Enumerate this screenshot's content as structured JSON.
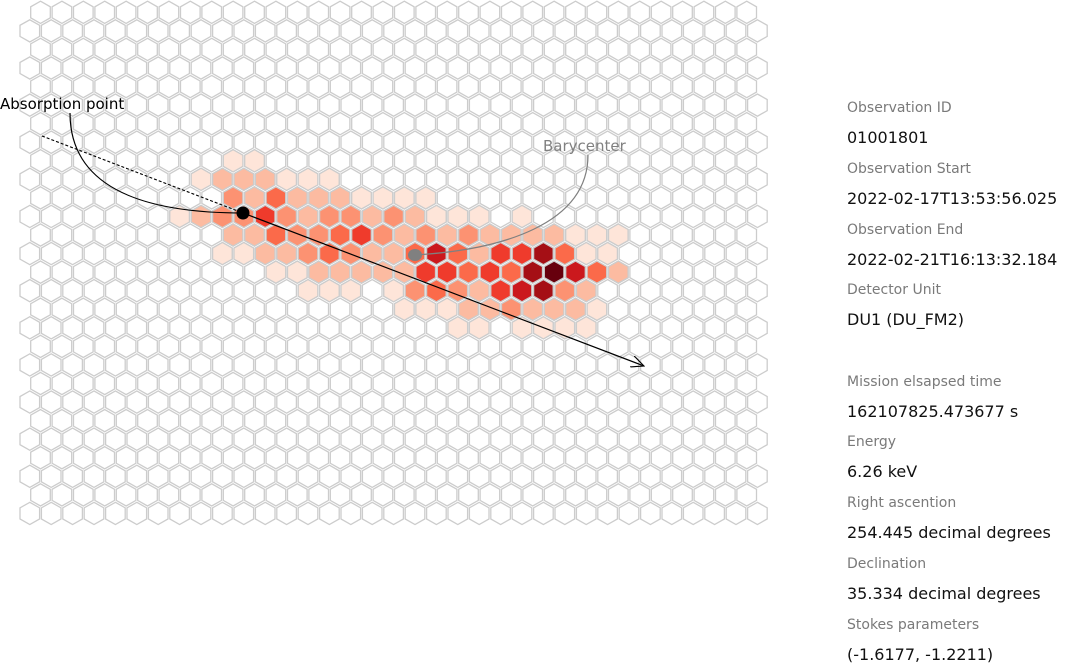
{
  "annotations": {
    "absorption_point": "Absorption point",
    "barycenter": "Barycenter"
  },
  "info": [
    {
      "label": "Observation ID",
      "value": "01001801"
    },
    {
      "label": "Observation Start",
      "value": "2022-02-17T13:53:56.025"
    },
    {
      "label": "Observation End",
      "value": "2022-02-21T16:13:32.184"
    },
    {
      "label": "Detector Unit",
      "value": "DU1 (DU_FM2)"
    },
    {
      "label": "Mission elsapsed time",
      "value": "162107825.473677 s"
    },
    {
      "label": "Energy",
      "value": "6.26 keV"
    },
    {
      "label": "Right ascention",
      "value": "254.445 decimal degrees"
    },
    {
      "label": "Declination",
      "value": "35.334 decimal degrees"
    },
    {
      "label": "Stokes parameters",
      "value": "(-1.6177, -1.2211)"
    }
  ],
  "colors": {
    "grid_stroke": "#cccccc",
    "absorption_marker": "#000000",
    "barycenter_marker": "#808080",
    "heat_scale": [
      "#fee5d9",
      "#fcbba1",
      "#fc9272",
      "#fb6a4a",
      "#ef3b2c",
      "#cb181d",
      "#a50f15",
      "#67000d"
    ]
  },
  "track_pixels": [
    {
      "row": 8,
      "col": 9,
      "level": 1
    },
    {
      "row": 8,
      "col": 10,
      "level": 1
    },
    {
      "row": 9,
      "col": 8,
      "level": 1
    },
    {
      "row": 9,
      "col": 9,
      "level": 2
    },
    {
      "row": 9,
      "col": 10,
      "level": 2
    },
    {
      "row": 9,
      "col": 11,
      "level": 2
    },
    {
      "row": 9,
      "col": 12,
      "level": 1
    },
    {
      "row": 9,
      "col": 13,
      "level": 1
    },
    {
      "row": 9,
      "col": 14,
      "level": 1
    },
    {
      "row": 10,
      "col": 9,
      "level": 3
    },
    {
      "row": 10,
      "col": 10,
      "level": 2
    },
    {
      "row": 10,
      "col": 11,
      "level": 4
    },
    {
      "row": 10,
      "col": 12,
      "level": 2
    },
    {
      "row": 10,
      "col": 13,
      "level": 2
    },
    {
      "row": 10,
      "col": 14,
      "level": 2
    },
    {
      "row": 10,
      "col": 15,
      "level": 1
    },
    {
      "row": 10,
      "col": 16,
      "level": 1
    },
    {
      "row": 10,
      "col": 17,
      "level": 1
    },
    {
      "row": 10,
      "col": 18,
      "level": 1
    },
    {
      "row": 11,
      "col": 7,
      "level": 1
    },
    {
      "row": 11,
      "col": 8,
      "level": 2
    },
    {
      "row": 11,
      "col": 9,
      "level": 3
    },
    {
      "row": 11,
      "col": 10,
      "level": 3
    },
    {
      "row": 11,
      "col": 11,
      "level": 5
    },
    {
      "row": 11,
      "col": 12,
      "level": 3
    },
    {
      "row": 11,
      "col": 13,
      "level": 2
    },
    {
      "row": 11,
      "col": 14,
      "level": 3
    },
    {
      "row": 11,
      "col": 15,
      "level": 3
    },
    {
      "row": 11,
      "col": 16,
      "level": 2
    },
    {
      "row": 11,
      "col": 17,
      "level": 3
    },
    {
      "row": 11,
      "col": 18,
      "level": 2
    },
    {
      "row": 11,
      "col": 19,
      "level": 1
    },
    {
      "row": 11,
      "col": 20,
      "level": 1
    },
    {
      "row": 11,
      "col": 21,
      "level": 1
    },
    {
      "row": 11,
      "col": 23,
      "level": 1
    },
    {
      "row": 12,
      "col": 9,
      "level": 2
    },
    {
      "row": 12,
      "col": 10,
      "level": 2
    },
    {
      "row": 12,
      "col": 11,
      "level": 4
    },
    {
      "row": 12,
      "col": 12,
      "level": 3
    },
    {
      "row": 12,
      "col": 13,
      "level": 3
    },
    {
      "row": 12,
      "col": 14,
      "level": 4
    },
    {
      "row": 12,
      "col": 15,
      "level": 5
    },
    {
      "row": 12,
      "col": 16,
      "level": 3
    },
    {
      "row": 12,
      "col": 17,
      "level": 2
    },
    {
      "row": 12,
      "col": 18,
      "level": 3
    },
    {
      "row": 12,
      "col": 19,
      "level": 2
    },
    {
      "row": 12,
      "col": 20,
      "level": 3
    },
    {
      "row": 12,
      "col": 21,
      "level": 2
    },
    {
      "row": 12,
      "col": 22,
      "level": 2
    },
    {
      "row": 12,
      "col": 23,
      "level": 2
    },
    {
      "row": 12,
      "col": 24,
      "level": 2
    },
    {
      "row": 12,
      "col": 25,
      "level": 1
    },
    {
      "row": 12,
      "col": 26,
      "level": 1
    },
    {
      "row": 12,
      "col": 27,
      "level": 1
    },
    {
      "row": 13,
      "col": 9,
      "level": 1
    },
    {
      "row": 13,
      "col": 10,
      "level": 1
    },
    {
      "row": 13,
      "col": 11,
      "level": 2
    },
    {
      "row": 13,
      "col": 12,
      "level": 2
    },
    {
      "row": 13,
      "col": 13,
      "level": 3
    },
    {
      "row": 13,
      "col": 14,
      "level": 4
    },
    {
      "row": 13,
      "col": 15,
      "level": 3
    },
    {
      "row": 13,
      "col": 16,
      "level": 2
    },
    {
      "row": 13,
      "col": 17,
      "level": 2
    },
    {
      "row": 13,
      "col": 18,
      "level": 4
    },
    {
      "row": 13,
      "col": 19,
      "level": 6
    },
    {
      "row": 13,
      "col": 20,
      "level": 4
    },
    {
      "row": 13,
      "col": 21,
      "level": 2
    },
    {
      "row": 13,
      "col": 22,
      "level": 5
    },
    {
      "row": 13,
      "col": 23,
      "level": 5
    },
    {
      "row": 13,
      "col": 24,
      "level": 7
    },
    {
      "row": 13,
      "col": 25,
      "level": 4
    },
    {
      "row": 13,
      "col": 26,
      "level": 1
    },
    {
      "row": 13,
      "col": 27,
      "level": 1
    },
    {
      "row": 14,
      "col": 11,
      "level": 1
    },
    {
      "row": 14,
      "col": 12,
      "level": 1
    },
    {
      "row": 14,
      "col": 13,
      "level": 2
    },
    {
      "row": 14,
      "col": 14,
      "level": 2
    },
    {
      "row": 14,
      "col": 15,
      "level": 2
    },
    {
      "row": 14,
      "col": 16,
      "level": 2
    },
    {
      "row": 14,
      "col": 17,
      "level": 2
    },
    {
      "row": 14,
      "col": 18,
      "level": 5
    },
    {
      "row": 14,
      "col": 19,
      "level": 5
    },
    {
      "row": 14,
      "col": 20,
      "level": 4
    },
    {
      "row": 14,
      "col": 21,
      "level": 5
    },
    {
      "row": 14,
      "col": 22,
      "level": 4
    },
    {
      "row": 14,
      "col": 23,
      "level": 7
    },
    {
      "row": 14,
      "col": 24,
      "level": 8
    },
    {
      "row": 14,
      "col": 25,
      "level": 6
    },
    {
      "row": 14,
      "col": 26,
      "level": 4
    },
    {
      "row": 14,
      "col": 27,
      "level": 2
    },
    {
      "row": 15,
      "col": 13,
      "level": 1
    },
    {
      "row": 15,
      "col": 14,
      "level": 1
    },
    {
      "row": 15,
      "col": 15,
      "level": 1
    },
    {
      "row": 15,
      "col": 17,
      "level": 1
    },
    {
      "row": 15,
      "col": 18,
      "level": 3
    },
    {
      "row": 15,
      "col": 19,
      "level": 4
    },
    {
      "row": 15,
      "col": 20,
      "level": 3
    },
    {
      "row": 15,
      "col": 21,
      "level": 2
    },
    {
      "row": 15,
      "col": 22,
      "level": 5
    },
    {
      "row": 15,
      "col": 23,
      "level": 6
    },
    {
      "row": 15,
      "col": 24,
      "level": 7
    },
    {
      "row": 15,
      "col": 25,
      "level": 3
    },
    {
      "row": 15,
      "col": 26,
      "level": 2
    },
    {
      "row": 16,
      "col": 17,
      "level": 1
    },
    {
      "row": 16,
      "col": 18,
      "level": 1
    },
    {
      "row": 16,
      "col": 19,
      "level": 1
    },
    {
      "row": 16,
      "col": 20,
      "level": 2
    },
    {
      "row": 16,
      "col": 21,
      "level": 2
    },
    {
      "row": 16,
      "col": 22,
      "level": 3
    },
    {
      "row": 16,
      "col": 23,
      "level": 2
    },
    {
      "row": 16,
      "col": 24,
      "level": 2
    },
    {
      "row": 16,
      "col": 25,
      "level": 2
    },
    {
      "row": 16,
      "col": 26,
      "level": 1
    },
    {
      "row": 17,
      "col": 20,
      "level": 1
    },
    {
      "row": 17,
      "col": 21,
      "level": 1
    },
    {
      "row": 17,
      "col": 23,
      "level": 1
    },
    {
      "row": 17,
      "col": 24,
      "level": 1
    },
    {
      "row": 17,
      "col": 25,
      "level": 1
    },
    {
      "row": 17,
      "col": 26,
      "level": 1
    }
  ]
}
